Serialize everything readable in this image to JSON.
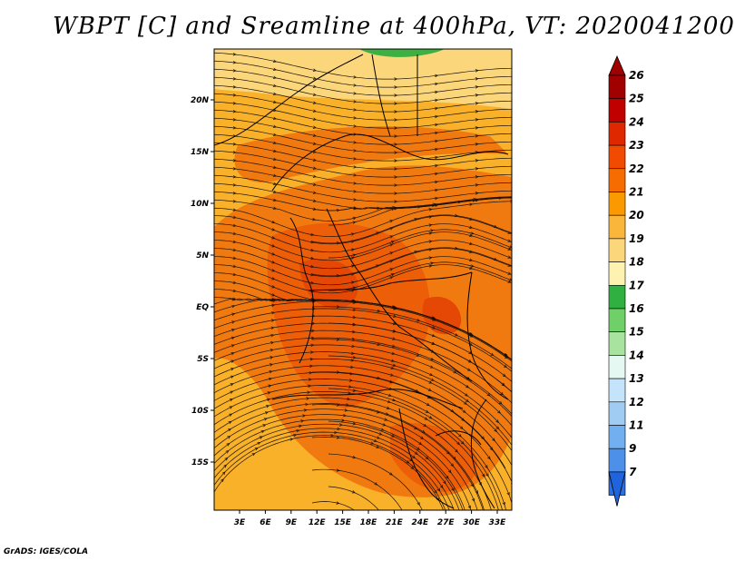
{
  "title": "WBPT [C] and Sreamline at 400hPa, VT: 2020041200",
  "credit": "GrADS: IGES/COLA",
  "lat_labels": [
    "20N",
    "15N",
    "10N",
    "5N",
    "EQ",
    "5S",
    "10S",
    "15S"
  ],
  "lon_labels": [
    "3E",
    "6E",
    "9E",
    "12E",
    "15E",
    "18E",
    "21E",
    "24E",
    "27E",
    "30E",
    "33E"
  ],
  "colorbar": {
    "labels": [
      "26",
      "25",
      "24",
      "23",
      "22",
      "21",
      "20",
      "19",
      "18",
      "17",
      "16",
      "15",
      "14",
      "13",
      "12",
      "11",
      "9",
      "7"
    ],
    "colors": [
      "#a00000",
      "#c00000",
      "#e02800",
      "#f04b00",
      "#f76c00",
      "#fa9a00",
      "#f9b63b",
      "#fbd67a",
      "#fef2b0",
      "#2fb040",
      "#6fd06a",
      "#a8e4a0",
      "#e6f8f2",
      "#c4e4fb",
      "#a0ccf4",
      "#72aff0",
      "#4c90ea",
      "#2a70e0"
    ],
    "top_arrow_color": "#a00000",
    "bottom_arrow_color": "#1f64dc"
  },
  "map_colors": {
    "base": "#f9b12a",
    "warm": "#f07a10",
    "hot": "#ec5e08",
    "core": "#e54804",
    "cool": "#fbd67a",
    "green": "#3cb040"
  }
}
